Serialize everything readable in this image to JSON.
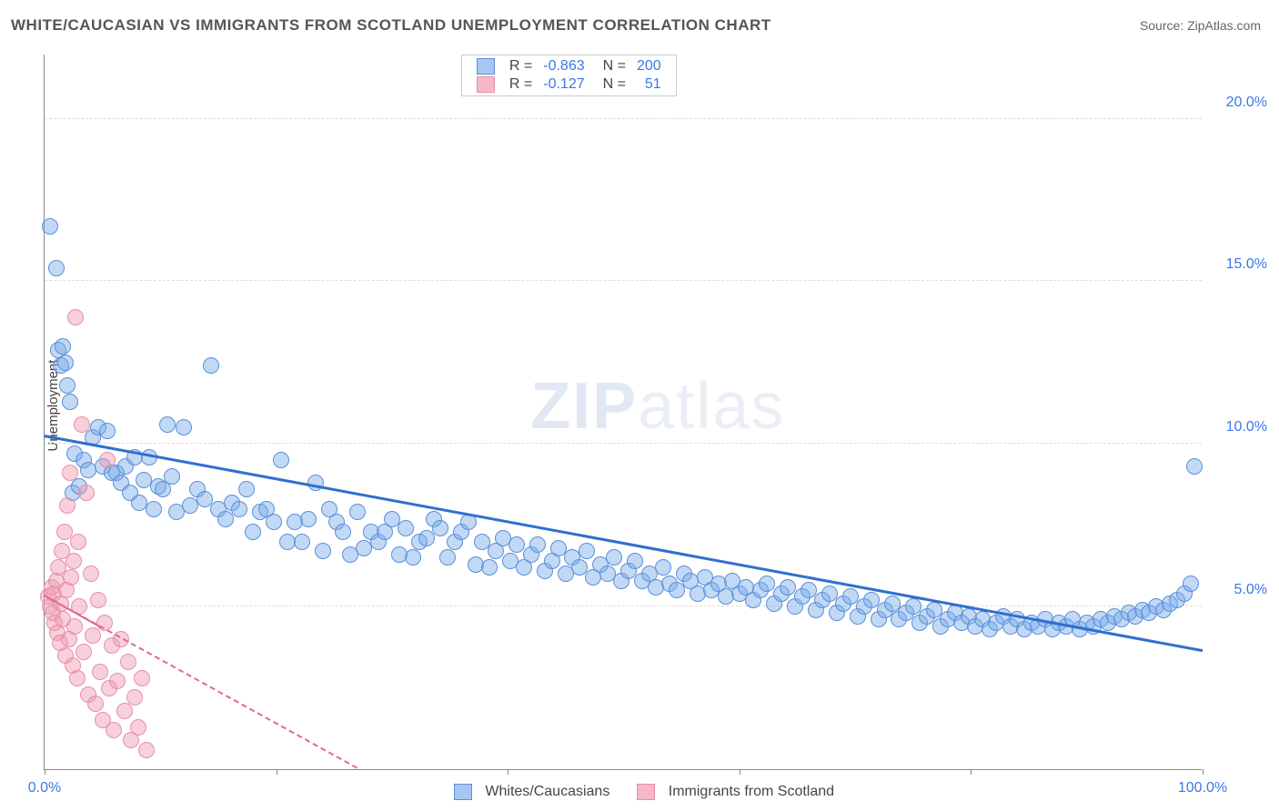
{
  "title": "WHITE/CAUCASIAN VS IMMIGRANTS FROM SCOTLAND UNEMPLOYMENT CORRELATION CHART",
  "source_prefix": "Source: ",
  "source_name": "ZipAtlas.com",
  "ylabel": "Unemployment",
  "watermark_bold": "ZIP",
  "watermark_rest": "atlas",
  "chart": {
    "type": "scatter",
    "background_color": "#ffffff",
    "grid_color": "#dddddd",
    "axis_color": "#888888",
    "xlim": [
      0,
      100
    ],
    "ylim": [
      0,
      22
    ],
    "xticks": [
      0,
      20,
      40,
      60,
      80,
      100
    ],
    "xtick_labels": {
      "0": "0.0%",
      "100": "100.0%"
    },
    "yticks": [
      5,
      10,
      15,
      20
    ],
    "ytick_labels": {
      "5": "5.0%",
      "10": "10.0%",
      "15": "15.0%",
      "20": "20.0%"
    },
    "tick_color": "#3b78e7",
    "tick_fontsize": 16,
    "marker_radius": 8,
    "marker_opacity": 0.55,
    "legend_top": {
      "r_label": "R =",
      "n_label": "N =",
      "rows": [
        {
          "swatch_fill": "#a7c7f2",
          "swatch_border": "#5b8fd6",
          "r": "-0.863",
          "n": "200",
          "value_color": "#3b78e7"
        },
        {
          "swatch_fill": "#f5b8c8",
          "swatch_border": "#e58fa8",
          "r": "-0.127",
          "n": "51",
          "value_color": "#3b78e7"
        }
      ]
    },
    "legend_bottom": [
      {
        "swatch_fill": "#a7c7f2",
        "swatch_border": "#5b8fd6",
        "label": "Whites/Caucasians"
      },
      {
        "swatch_fill": "#f5b8c8",
        "swatch_border": "#e58fa8",
        "label": "Immigrants from Scotland"
      }
    ],
    "series": [
      {
        "name": "whites",
        "fill": "rgba(120,170,235,0.45)",
        "stroke": "#5b8fd6",
        "trend": {
          "x1": 0,
          "y1": 10.2,
          "x2": 100,
          "y2": 3.6,
          "color": "#2f6fd0",
          "width": 3,
          "dash": "solid"
        },
        "points": [
          [
            0.5,
            16.7
          ],
          [
            1.0,
            15.4
          ],
          [
            1.2,
            12.9
          ],
          [
            1.4,
            12.4
          ],
          [
            1.6,
            13.0
          ],
          [
            1.8,
            12.5
          ],
          [
            2.0,
            11.8
          ],
          [
            2.2,
            11.3
          ],
          [
            2.4,
            8.5
          ],
          [
            2.6,
            9.7
          ],
          [
            3.0,
            8.7
          ],
          [
            3.4,
            9.5
          ],
          [
            3.8,
            9.2
          ],
          [
            4.2,
            10.2
          ],
          [
            4.6,
            10.5
          ],
          [
            5.0,
            9.3
          ],
          [
            5.4,
            10.4
          ],
          [
            5.8,
            9.1
          ],
          [
            6.2,
            9.1
          ],
          [
            6.6,
            8.8
          ],
          [
            7.0,
            9.3
          ],
          [
            7.4,
            8.5
          ],
          [
            7.8,
            9.6
          ],
          [
            8.2,
            8.2
          ],
          [
            8.6,
            8.9
          ],
          [
            9.0,
            9.6
          ],
          [
            9.4,
            8.0
          ],
          [
            9.8,
            8.7
          ],
          [
            10.2,
            8.6
          ],
          [
            10.6,
            10.6
          ],
          [
            11.0,
            9.0
          ],
          [
            11.4,
            7.9
          ],
          [
            12.0,
            10.5
          ],
          [
            12.6,
            8.1
          ],
          [
            13.2,
            8.6
          ],
          [
            13.8,
            8.3
          ],
          [
            14.4,
            12.4
          ],
          [
            15.0,
            8.0
          ],
          [
            15.6,
            7.7
          ],
          [
            16.2,
            8.2
          ],
          [
            16.8,
            8.0
          ],
          [
            17.4,
            8.6
          ],
          [
            18.0,
            7.3
          ],
          [
            18.6,
            7.9
          ],
          [
            19.2,
            8.0
          ],
          [
            19.8,
            7.6
          ],
          [
            20.4,
            9.5
          ],
          [
            21.0,
            7.0
          ],
          [
            21.6,
            7.6
          ],
          [
            22.2,
            7.0
          ],
          [
            22.8,
            7.7
          ],
          [
            23.4,
            8.8
          ],
          [
            24.0,
            6.7
          ],
          [
            24.6,
            8.0
          ],
          [
            25.2,
            7.6
          ],
          [
            25.8,
            7.3
          ],
          [
            26.4,
            6.6
          ],
          [
            27.0,
            7.9
          ],
          [
            27.6,
            6.8
          ],
          [
            28.2,
            7.3
          ],
          [
            28.8,
            7.0
          ],
          [
            29.4,
            7.3
          ],
          [
            30.0,
            7.7
          ],
          [
            30.6,
            6.6
          ],
          [
            31.2,
            7.4
          ],
          [
            31.8,
            6.5
          ],
          [
            32.4,
            7.0
          ],
          [
            33.0,
            7.1
          ],
          [
            33.6,
            7.7
          ],
          [
            34.2,
            7.4
          ],
          [
            34.8,
            6.5
          ],
          [
            35.4,
            7.0
          ],
          [
            36.0,
            7.3
          ],
          [
            36.6,
            7.6
          ],
          [
            37.2,
            6.3
          ],
          [
            37.8,
            7.0
          ],
          [
            38.4,
            6.2
          ],
          [
            39.0,
            6.7
          ],
          [
            39.6,
            7.1
          ],
          [
            40.2,
            6.4
          ],
          [
            40.8,
            6.9
          ],
          [
            41.4,
            6.2
          ],
          [
            42.0,
            6.6
          ],
          [
            42.6,
            6.9
          ],
          [
            43.2,
            6.1
          ],
          [
            43.8,
            6.4
          ],
          [
            44.4,
            6.8
          ],
          [
            45.0,
            6.0
          ],
          [
            45.6,
            6.5
          ],
          [
            46.2,
            6.2
          ],
          [
            46.8,
            6.7
          ],
          [
            47.4,
            5.9
          ],
          [
            48.0,
            6.3
          ],
          [
            48.6,
            6.0
          ],
          [
            49.2,
            6.5
          ],
          [
            49.8,
            5.8
          ],
          [
            50.4,
            6.1
          ],
          [
            51.0,
            6.4
          ],
          [
            51.6,
            5.8
          ],
          [
            52.2,
            6.0
          ],
          [
            52.8,
            5.6
          ],
          [
            53.4,
            6.2
          ],
          [
            54.0,
            5.7
          ],
          [
            54.6,
            5.5
          ],
          [
            55.2,
            6.0
          ],
          [
            55.8,
            5.8
          ],
          [
            56.4,
            5.4
          ],
          [
            57.0,
            5.9
          ],
          [
            57.6,
            5.5
          ],
          [
            58.2,
            5.7
          ],
          [
            58.8,
            5.3
          ],
          [
            59.4,
            5.8
          ],
          [
            60.0,
            5.4
          ],
          [
            60.6,
            5.6
          ],
          [
            61.2,
            5.2
          ],
          [
            61.8,
            5.5
          ],
          [
            62.4,
            5.7
          ],
          [
            63.0,
            5.1
          ],
          [
            63.6,
            5.4
          ],
          [
            64.2,
            5.6
          ],
          [
            64.8,
            5.0
          ],
          [
            65.4,
            5.3
          ],
          [
            66.0,
            5.5
          ],
          [
            66.6,
            4.9
          ],
          [
            67.2,
            5.2
          ],
          [
            67.8,
            5.4
          ],
          [
            68.4,
            4.8
          ],
          [
            69.0,
            5.1
          ],
          [
            69.6,
            5.3
          ],
          [
            70.2,
            4.7
          ],
          [
            70.8,
            5.0
          ],
          [
            71.4,
            5.2
          ],
          [
            72.0,
            4.6
          ],
          [
            72.6,
            4.9
          ],
          [
            73.2,
            5.1
          ],
          [
            73.8,
            4.6
          ],
          [
            74.4,
            4.8
          ],
          [
            75.0,
            5.0
          ],
          [
            75.6,
            4.5
          ],
          [
            76.2,
            4.7
          ],
          [
            76.8,
            4.9
          ],
          [
            77.4,
            4.4
          ],
          [
            78.0,
            4.6
          ],
          [
            78.6,
            4.8
          ],
          [
            79.2,
            4.5
          ],
          [
            79.8,
            4.7
          ],
          [
            80.4,
            4.4
          ],
          [
            81.0,
            4.6
          ],
          [
            81.6,
            4.3
          ],
          [
            82.2,
            4.5
          ],
          [
            82.8,
            4.7
          ],
          [
            83.4,
            4.4
          ],
          [
            84.0,
            4.6
          ],
          [
            84.6,
            4.3
          ],
          [
            85.2,
            4.5
          ],
          [
            85.8,
            4.4
          ],
          [
            86.4,
            4.6
          ],
          [
            87.0,
            4.3
          ],
          [
            87.6,
            4.5
          ],
          [
            88.2,
            4.4
          ],
          [
            88.8,
            4.6
          ],
          [
            89.4,
            4.3
          ],
          [
            90.0,
            4.5
          ],
          [
            90.6,
            4.4
          ],
          [
            91.2,
            4.6
          ],
          [
            91.8,
            4.5
          ],
          [
            92.4,
            4.7
          ],
          [
            93.0,
            4.6
          ],
          [
            93.6,
            4.8
          ],
          [
            94.2,
            4.7
          ],
          [
            94.8,
            4.9
          ],
          [
            95.4,
            4.8
          ],
          [
            96.0,
            5.0
          ],
          [
            96.6,
            4.9
          ],
          [
            97.2,
            5.1
          ],
          [
            97.8,
            5.2
          ],
          [
            98.4,
            5.4
          ],
          [
            99.0,
            5.7
          ],
          [
            99.3,
            9.3
          ]
        ]
      },
      {
        "name": "scotland",
        "fill": "rgba(240,150,175,0.45)",
        "stroke": "#e58fa8",
        "trend": {
          "x1": 0,
          "y1": 5.3,
          "x2": 27,
          "y2": 0,
          "color": "#e06a8c",
          "width": 2,
          "dash": "dashed",
          "solid_portion": {
            "x1": 0,
            "y1": 5.3,
            "x2": 5,
            "y2": 4.3
          }
        },
        "points": [
          [
            0.3,
            5.3
          ],
          [
            0.5,
            5.0
          ],
          [
            0.6,
            5.6
          ],
          [
            0.7,
            4.8
          ],
          [
            0.8,
            5.4
          ],
          [
            0.9,
            4.5
          ],
          [
            1.0,
            5.8
          ],
          [
            1.1,
            4.2
          ],
          [
            1.2,
            6.2
          ],
          [
            1.3,
            3.9
          ],
          [
            1.4,
            5.1
          ],
          [
            1.5,
            6.7
          ],
          [
            1.6,
            4.6
          ],
          [
            1.7,
            7.3
          ],
          [
            1.8,
            3.5
          ],
          [
            1.9,
            5.5
          ],
          [
            2.0,
            8.1
          ],
          [
            2.1,
            4.0
          ],
          [
            2.2,
            9.1
          ],
          [
            2.3,
            5.9
          ],
          [
            2.4,
            3.2
          ],
          [
            2.5,
            6.4
          ],
          [
            2.6,
            4.4
          ],
          [
            2.7,
            13.9
          ],
          [
            2.8,
            2.8
          ],
          [
            2.9,
            7.0
          ],
          [
            3.0,
            5.0
          ],
          [
            3.2,
            10.6
          ],
          [
            3.4,
            3.6
          ],
          [
            3.6,
            8.5
          ],
          [
            3.8,
            2.3
          ],
          [
            4.0,
            6.0
          ],
          [
            4.2,
            4.1
          ],
          [
            4.4,
            2.0
          ],
          [
            4.6,
            5.2
          ],
          [
            4.8,
            3.0
          ],
          [
            5.0,
            1.5
          ],
          [
            5.2,
            4.5
          ],
          [
            5.4,
            9.5
          ],
          [
            5.6,
            2.5
          ],
          [
            5.8,
            3.8
          ],
          [
            6.0,
            1.2
          ],
          [
            6.3,
            2.7
          ],
          [
            6.6,
            4.0
          ],
          [
            6.9,
            1.8
          ],
          [
            7.2,
            3.3
          ],
          [
            7.5,
            0.9
          ],
          [
            7.8,
            2.2
          ],
          [
            8.1,
            1.3
          ],
          [
            8.4,
            2.8
          ],
          [
            8.8,
            0.6
          ]
        ]
      }
    ]
  }
}
